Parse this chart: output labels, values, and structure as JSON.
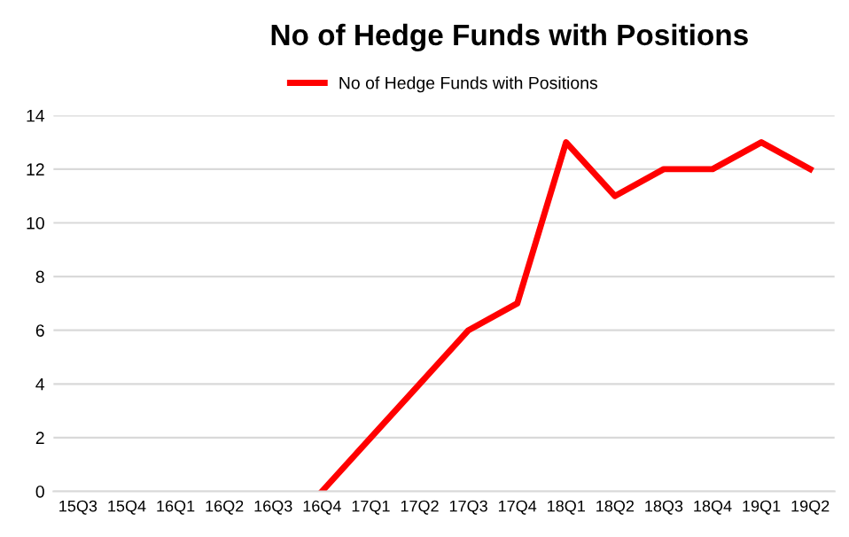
{
  "chart_data": {
    "type": "line",
    "title": "No of Hedge Funds with Positions",
    "categories": [
      "15Q3",
      "15Q4",
      "16Q1",
      "16Q2",
      "16Q3",
      "16Q4",
      "17Q1",
      "17Q2",
      "17Q3",
      "17Q4",
      "18Q1",
      "18Q2",
      "18Q3",
      "18Q4",
      "19Q1",
      "19Q2"
    ],
    "series": [
      {
        "name": "No of Hedge Funds with Positions",
        "color": "#ff0000",
        "values": [
          null,
          null,
          null,
          null,
          null,
          0,
          2,
          4,
          6,
          7,
          13,
          11,
          12,
          12,
          13,
          12
        ]
      }
    ],
    "ylim": [
      0,
      14
    ],
    "yticks": [
      0,
      2,
      4,
      6,
      8,
      10,
      12,
      14
    ],
    "grid": "y",
    "legend": "top",
    "marker": "none",
    "line_style": "solid"
  }
}
